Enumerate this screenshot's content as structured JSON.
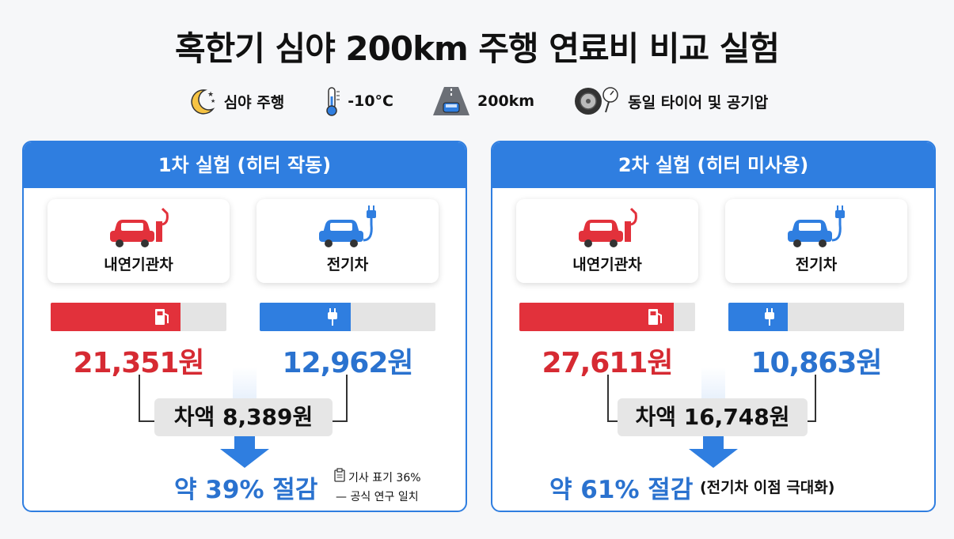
{
  "title": "혹한기 심야 200km 주행 연료비 비교 실험",
  "conditions": [
    {
      "icon": "moon-icon",
      "label": "심야 주행"
    },
    {
      "icon": "thermometer-icon",
      "label": "-10°C"
    },
    {
      "icon": "road-icon",
      "label": "200km"
    },
    {
      "icon": "tire-gauge-icon",
      "label": "동일 타이어 및 공기압"
    }
  ],
  "colors": {
    "accent": "#2f7ee0",
    "ice": "#e2313b",
    "ev": "#2f7ee0"
  },
  "experiments": [
    {
      "heading": "1차 실험 (히터 작동)",
      "ice_label": "내연기관차",
      "ev_label": "전기차",
      "ice_cost": "21,351원",
      "ev_cost": "12,962원",
      "ice_bar_level": 0.74,
      "ev_bar_level": 0.52,
      "difference": "차액 8,389원",
      "saving": "약 39% 절감",
      "note_line1": "기사 표기 36%",
      "note_line2": "— 공식 연구 일치"
    },
    {
      "heading": "2차 실험 (히터 미사용)",
      "ice_label": "내연기관차",
      "ev_label": "전기차",
      "ice_cost": "27,611원",
      "ev_cost": "10,863원",
      "ice_bar_level": 0.88,
      "ev_bar_level": 0.34,
      "difference": "차액 16,748원",
      "saving": "약 61% 절감",
      "note": "(전기차 이점 극대화)"
    }
  ]
}
